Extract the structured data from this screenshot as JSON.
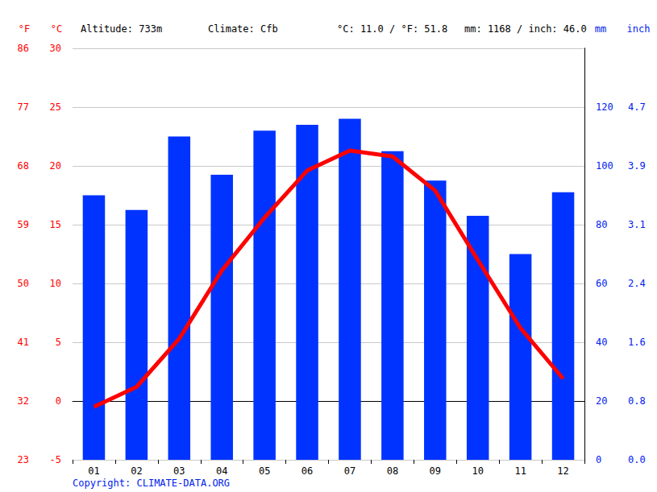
{
  "chart_data": {
    "type": "combo",
    "categories": [
      "01",
      "02",
      "03",
      "04",
      "05",
      "06",
      "07",
      "08",
      "09",
      "10",
      "11",
      "12"
    ],
    "series": [
      {
        "type": "bar",
        "axis": "y2",
        "color": "#0033ff",
        "values": [
          90,
          85,
          110,
          97,
          112,
          114,
          116,
          105,
          95,
          83,
          70,
          91
        ]
      },
      {
        "type": "line",
        "axis": "y",
        "color": "#ff0000",
        "marker": "none",
        "line_style": "solid",
        "values": [
          -0.5,
          1.2,
          5.3,
          11.1,
          15.6,
          19.6,
          21.3,
          20.8,
          17.9,
          12.0,
          6.2,
          1.9
        ]
      }
    ],
    "y_label": "°C",
    "ylim": [
      -5,
      30
    ],
    "yticks": [
      -5,
      0,
      5,
      10,
      15,
      20,
      25,
      30
    ],
    "y2_label": "mm",
    "y2lim": [
      0,
      140
    ],
    "y2ticks": [
      0,
      20,
      40,
      60,
      80,
      100,
      120
    ],
    "y3_label": "°F",
    "y3lim": [
      23,
      86
    ],
    "y3ticks": [
      23,
      32,
      41,
      50,
      59,
      68,
      77,
      86
    ],
    "y4_label": "inch",
    "y4lim": [
      0,
      5.5118
    ],
    "y4ticks": [
      {
        "value": 0,
        "label": "0.0"
      },
      {
        "value": 0.7874,
        "label": "0.8"
      },
      {
        "value": 1.5748,
        "label": "1.6"
      },
      {
        "value": 2.3622,
        "label": "2.4"
      },
      {
        "value": 3.1496,
        "label": "3.1"
      },
      {
        "value": 3.937,
        "label": "3.9"
      },
      {
        "value": 4.7244,
        "label": "4.7"
      }
    ],
    "annotations": {
      "altitude": "Altitude: 733m",
      "climate": "Climate: Cfb",
      "temperature_mean": "°C: 11.0 / °F: 51.8",
      "precipitation_total": "mm: 1168 / inch: 46.0",
      "copyright": "Copyright: CLIMATE-DATA.ORG"
    },
    "grid": true
  }
}
